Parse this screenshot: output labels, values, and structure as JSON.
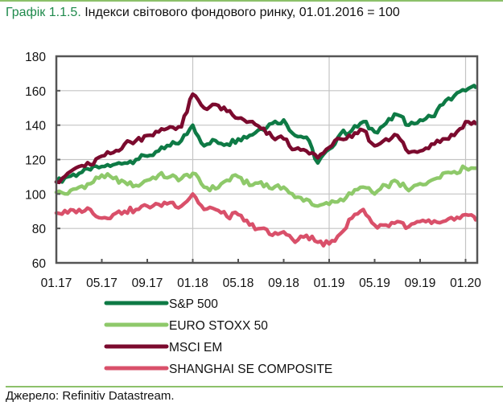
{
  "title": {
    "number": "Графік 1.1.5.",
    "text": " Індекси світового фондового ринку, 01.01.2016 = 100"
  },
  "source": "Джерело: Refinitiv Datastream.",
  "chart_data": {
    "type": "line",
    "title": "Індекси світового фондового ринку, 01.01.2016 = 100",
    "xlabel": "",
    "ylabel": "",
    "ylim": [
      60,
      180
    ],
    "yticks": [
      "60",
      "80",
      "100",
      "120",
      "140",
      "160",
      "180"
    ],
    "xticks": [
      "01.17",
      "05.17",
      "09.17",
      "01.18",
      "05.18",
      "09.18",
      "01.19",
      "05.19",
      "09.19",
      "01.20"
    ],
    "xlim": [
      "2017-01",
      "2020-02"
    ],
    "grid": true,
    "legend_position": "bottom",
    "x": [
      "2017-01",
      "2017-02",
      "2017-03",
      "2017-04",
      "2017-05",
      "2017-06",
      "2017-07",
      "2017-08",
      "2017-09",
      "2017-10",
      "2017-11",
      "2017-12",
      "2018-01",
      "2018-02",
      "2018-03",
      "2018-04",
      "2018-05",
      "2018-06",
      "2018-07",
      "2018-08",
      "2018-09",
      "2018-10",
      "2018-11",
      "2018-12",
      "2019-01",
      "2019-02",
      "2019-03",
      "2019-04",
      "2019-05",
      "2019-06",
      "2019-07",
      "2019-08",
      "2019-09",
      "2019-10",
      "2019-11",
      "2019-12",
      "2020-01",
      "2020-02"
    ],
    "series": [
      {
        "name": "S&P 500",
        "color": "#0e7a45",
        "values": [
          107,
          110,
          112,
          114,
          116,
          117,
          118,
          120,
          122,
          125,
          128,
          131,
          140,
          128,
          131,
          129,
          132,
          134,
          138,
          141,
          143,
          134,
          133,
          118,
          126,
          135,
          137,
          142,
          136,
          141,
          146,
          140,
          143,
          145,
          152,
          157,
          160,
          162
        ]
      },
      {
        "name": "EURO STOXX 50",
        "color": "#8ec96a",
        "values": [
          101,
          100,
          104,
          106,
          111,
          109,
          107,
          105,
          108,
          111,
          110,
          109,
          112,
          104,
          103,
          108,
          110,
          105,
          107,
          103,
          104,
          98,
          97,
          93,
          94,
          97,
          100,
          104,
          100,
          105,
          107,
          102,
          106,
          108,
          112,
          113,
          115,
          115
        ]
      },
      {
        "name": "MSCI EM",
        "color": "#7b0a2e",
        "values": [
          107,
          112,
          116,
          117,
          122,
          124,
          129,
          131,
          134,
          136,
          139,
          139,
          158,
          150,
          152,
          148,
          144,
          142,
          138,
          133,
          132,
          126,
          125,
          121,
          127,
          132,
          133,
          137,
          128,
          132,
          134,
          124,
          125,
          129,
          132,
          134,
          142,
          141
        ]
      },
      {
        "name": "SHANGHAI SE COMPOSITE",
        "color": "#d9506a",
        "values": [
          89,
          89,
          91,
          91,
          86,
          88,
          90,
          91,
          93,
          94,
          95,
          93,
          100,
          91,
          91,
          87,
          88,
          82,
          80,
          76,
          78,
          72,
          76,
          72,
          71,
          77,
          86,
          91,
          82,
          82,
          84,
          81,
          84,
          83,
          84,
          85,
          88,
          85
        ]
      }
    ]
  }
}
